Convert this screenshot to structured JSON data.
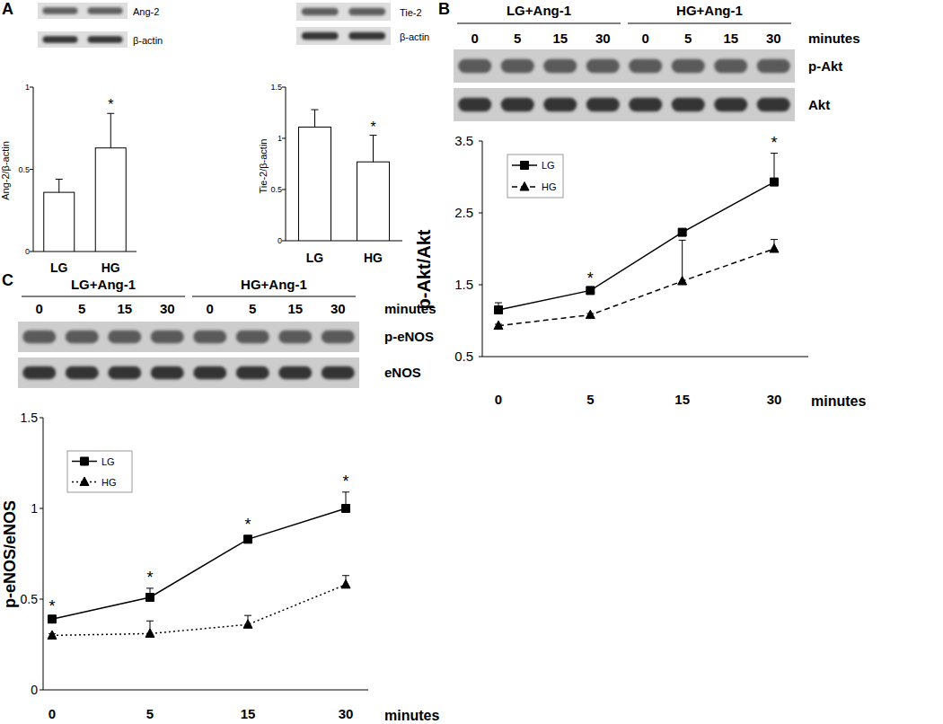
{
  "chart_data": [
    {
      "type": "bar",
      "title": "A",
      "blot": {
        "rows": [
          "Ang-2",
          "β-actin"
        ]
      },
      "categories": [
        "LG",
        "HG"
      ],
      "ylabel": "Ang-2/β-actin",
      "ylim": [
        0,
        1
      ],
      "yticks": [
        0,
        0.5,
        1
      ],
      "color": "#ffffff",
      "values": [
        0.36,
        0.63
      ],
      "errors": [
        0.08,
        0.21
      ],
      "annotations": [
        {
          "text": "*",
          "category": "HG"
        }
      ]
    },
    {
      "type": "bar",
      "blot": {
        "rows": [
          "Tie-2",
          "β-actin"
        ]
      },
      "categories": [
        "LG",
        "HG"
      ],
      "ylabel": "Tie-2/β-actin",
      "ylim": [
        0,
        1.5
      ],
      "yticks": [
        0,
        0.5,
        1,
        1.5
      ],
      "color": "#ffffff",
      "values": [
        1.11,
        0.77
      ],
      "errors": [
        0.17,
        0.26
      ],
      "annotations": [
        {
          "text": "*",
          "category": "HG"
        }
      ]
    },
    {
      "type": "line",
      "title": "B",
      "blot": {
        "groups": [
          "LG+Ang-1",
          "HG+Ang-1"
        ],
        "lanes": [
          "0",
          "5",
          "15",
          "30",
          "0",
          "5",
          "15",
          "30"
        ],
        "lane_unit": "minutes",
        "rows": [
          "p-Akt",
          "Akt"
        ]
      },
      "categories": [
        "0",
        "5",
        "15",
        "30"
      ],
      "xlabel": "minutes",
      "ylabel": "p-Akt/Akt",
      "ylim": [
        0.5,
        3.5
      ],
      "yticks": [
        0.5,
        1.5,
        2.5,
        3.5
      ],
      "legend": "upper left",
      "series": [
        {
          "name": "LG",
          "color": "#000000",
          "marker": "square",
          "line_style": "solid",
          "values": [
            1.15,
            1.42,
            2.23,
            2.93
          ],
          "errors": [
            0.1,
            0.02,
            0,
            0.4
          ]
        },
        {
          "name": "HG",
          "color": "#000000",
          "marker": "triangle",
          "line_style": "dashed",
          "values": [
            0.93,
            1.08,
            1.55,
            2.0
          ],
          "errors": [
            0.02,
            0.02,
            0.57,
            0.13
          ]
        }
      ],
      "annotations": [
        {
          "text": "*",
          "category": "5"
        },
        {
          "text": "*",
          "category": "30"
        }
      ]
    },
    {
      "type": "line",
      "title": "C",
      "blot": {
        "groups": [
          "LG+Ang-1",
          "HG+Ang-1"
        ],
        "lanes": [
          "0",
          "5",
          "15",
          "30",
          "0",
          "5",
          "15",
          "30"
        ],
        "lane_unit": "minutes",
        "rows": [
          "p-eNOS",
          "eNOS"
        ]
      },
      "categories": [
        "0",
        "5",
        "15",
        "30"
      ],
      "xlabel": "minutes",
      "ylabel": "p-eNOS/eNOS",
      "ylim": [
        0,
        1.5
      ],
      "yticks": [
        0,
        0.5,
        1,
        1.5
      ],
      "legend": "upper left",
      "series": [
        {
          "name": "LG",
          "color": "#000000",
          "marker": "square",
          "line_style": "solid",
          "values": [
            0.39,
            0.51,
            0.83,
            1.0
          ],
          "errors": [
            0.01,
            0.05,
            0.02,
            0.09
          ]
        },
        {
          "name": "HG",
          "color": "#000000",
          "marker": "triangle",
          "line_style": "dotted",
          "values": [
            0.3,
            0.31,
            0.36,
            0.58
          ],
          "errors": [
            0.01,
            0.07,
            0.05,
            0.05
          ]
        }
      ],
      "annotations": [
        {
          "text": "*",
          "category": "0"
        },
        {
          "text": "*",
          "category": "5"
        },
        {
          "text": "*",
          "category": "15"
        },
        {
          "text": "*",
          "category": "30"
        }
      ]
    }
  ]
}
